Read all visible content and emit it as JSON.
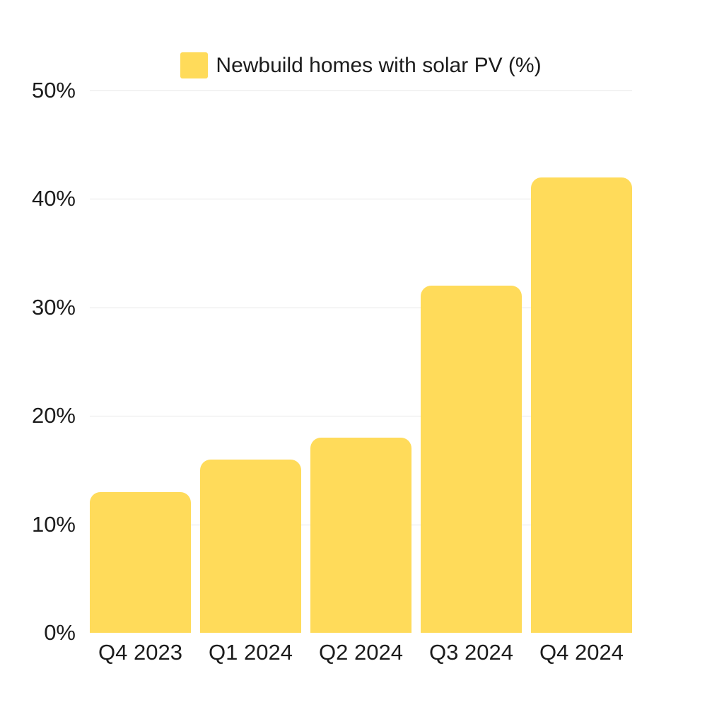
{
  "legend": {
    "label": "Newbuild homes with solar PV (%)",
    "swatch_color": "#FFDB5A"
  },
  "chart_data": {
    "type": "bar",
    "title": "",
    "categories": [
      "Q4 2023",
      "Q1 2024",
      "Q2 2024",
      "Q3 2024",
      "Q4 2024"
    ],
    "values": [
      13,
      16,
      18,
      32,
      42
    ],
    "series_name": "Newbuild homes with solar PV (%)",
    "xlabel": "",
    "ylabel": "",
    "ylim": [
      0,
      50
    ],
    "ytick_step": 10,
    "ytick_labels": [
      "0%",
      "10%",
      "20%",
      "30%",
      "40%",
      "50%"
    ],
    "grid": true,
    "legend_position": "top-center",
    "bar_color": "#FFDB5A",
    "gridline_color": "#e6e6e6",
    "text_color": "#1c1c1c",
    "background_color": "#ffffff"
  }
}
